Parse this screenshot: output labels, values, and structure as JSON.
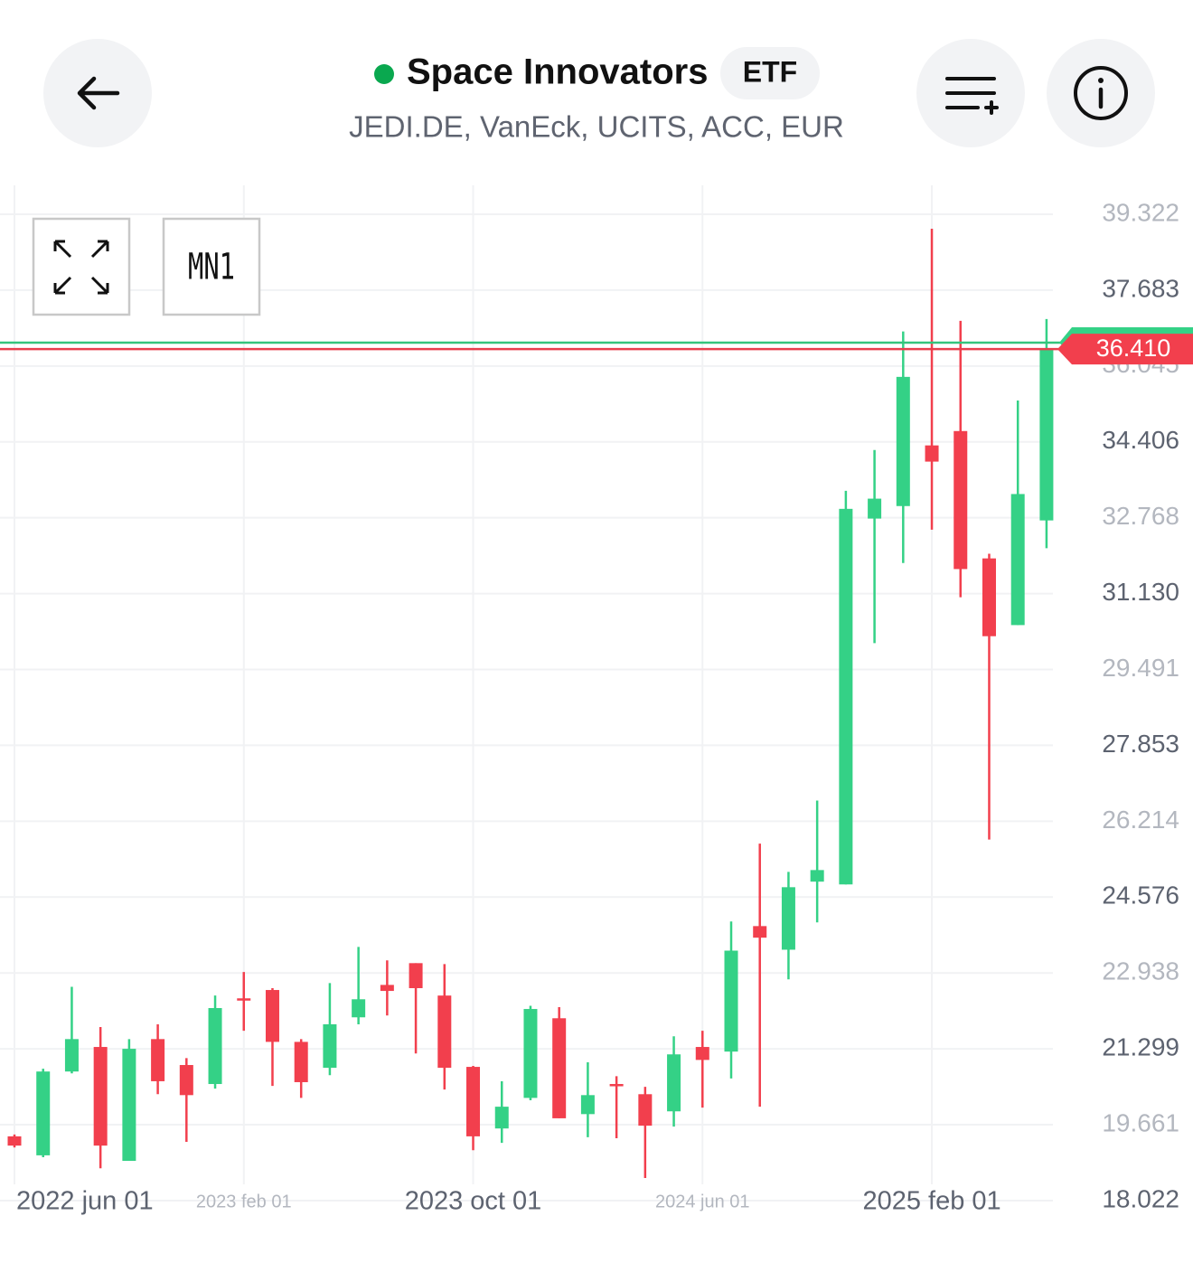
{
  "header": {
    "title": "Space Innovators",
    "badge": "ETF",
    "subtitle": "JEDI.DE, VanEck, UCITS, ACC, EUR"
  },
  "chart_data": {
    "type": "candlestick",
    "timeframe": "MN1",
    "categories": [
      "2022 jun 01",
      null,
      null,
      null,
      null,
      null,
      null,
      null,
      "2023 feb 01",
      null,
      null,
      null,
      null,
      null,
      null,
      null,
      "2023 oct 01",
      null,
      null,
      null,
      null,
      null,
      null,
      null,
      "2024 jun 01",
      null,
      null,
      null,
      null,
      null,
      null,
      null,
      "2025 feb 01",
      null,
      null,
      null,
      null
    ],
    "open": [
      19.41,
      19.0,
      20.81,
      21.34,
      18.88,
      21.51,
      20.95,
      20.54,
      22.39,
      22.57,
      21.45,
      20.89,
      21.98,
      22.68,
      23.15,
      22.45,
      20.91,
      19.58,
      20.24,
      21.96,
      19.89,
      20.54,
      20.32,
      19.95,
      21.34,
      21.24,
      23.95,
      23.44,
      24.91,
      24.85,
      32.75,
      33.02,
      34.33,
      34.64,
      31.89,
      30.45,
      32.71
    ],
    "high": [
      19.45,
      20.87,
      22.64,
      21.77,
      21.51,
      21.83,
      21.1,
      22.45,
      22.96,
      22.61,
      21.51,
      22.72,
      23.5,
      23.21,
      23.15,
      23.13,
      20.93,
      20.6,
      22.23,
      22.2,
      21.01,
      20.71,
      20.48,
      21.57,
      21.69,
      24.05,
      25.73,
      25.12,
      26.66,
      33.35,
      34.23,
      36.79,
      39.01,
      37.02,
      31.99,
      35.3,
      37.06
    ],
    "low": [
      19.17,
      18.96,
      20.77,
      18.72,
      18.88,
      20.32,
      19.29,
      20.44,
      21.69,
      20.5,
      20.24,
      20.73,
      21.83,
      22.02,
      21.2,
      20.42,
      19.11,
      19.27,
      20.19,
      19.8,
      19.39,
      19.37,
      18.51,
      19.62,
      20.03,
      20.66,
      20.05,
      22.8,
      24.03,
      24.85,
      30.06,
      31.79,
      32.51,
      31.05,
      25.82,
      30.45,
      32.11
    ],
    "close": [
      19.21,
      20.81,
      21.51,
      19.21,
      21.3,
      20.6,
      20.3,
      22.18,
      22.35,
      21.45,
      20.58,
      21.83,
      22.37,
      22.55,
      22.61,
      20.89,
      19.41,
      20.05,
      22.16,
      19.8,
      20.3,
      20.5,
      19.64,
      21.18,
      21.06,
      23.42,
      23.7,
      24.79,
      25.16,
      32.96,
      33.18,
      35.81,
      33.98,
      31.66,
      30.21,
      33.28,
      36.42
    ],
    "up_color": "#34d186",
    "down_color": "#f23f4d",
    "ylim": [
      18.022,
      39.946
    ],
    "yticks": [
      39.322,
      37.683,
      36.045,
      34.406,
      32.768,
      {
        "value": 31.13,
        "label": "31.130"
      },
      29.491,
      27.853,
      26.214,
      24.576,
      22.938,
      21.299,
      19.661,
      18.022
    ],
    "grid": true,
    "last_price": {
      "value": 36.41,
      "label": "36.410"
    },
    "ask_price": 36.55
  }
}
